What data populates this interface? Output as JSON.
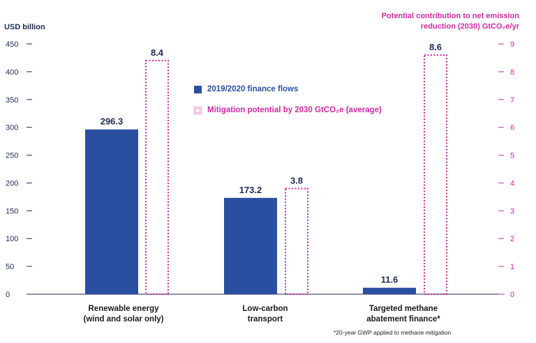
{
  "chart_data": {
    "type": "bar",
    "categories": [
      [
        "Renewable energy",
        "(wind and solar only)"
      ],
      [
        "Low-carbon",
        "transport"
      ],
      [
        "Targeted methane",
        "abatement finance*"
      ]
    ],
    "series": [
      {
        "name": "2019/2020 finance flows",
        "axis": "left",
        "values": [
          296.3,
          173.2,
          11.6
        ],
        "labels": [
          "296.3",
          "173.2",
          "11.6"
        ],
        "color": "#2b4fa0",
        "style": "solid"
      },
      {
        "name": "Mitigation potential by 2030 GtCO₂e (average)",
        "axis": "right",
        "values": [
          8.4,
          3.8,
          8.6
        ],
        "labels": [
          "8.4",
          "3.8",
          "8.6"
        ],
        "color": "#cc2aa1",
        "style": "dotted-outline"
      }
    ],
    "ylabel_left": "USD billion",
    "ylabel_right": [
      "Potential contribution to net emission",
      "reduction (2030) GtCO₂e/yr"
    ],
    "ylim_left": [
      0,
      450
    ],
    "yticks_left": [
      0,
      50,
      100,
      150,
      200,
      250,
      300,
      350,
      400,
      450
    ],
    "ylim_right": [
      0,
      9
    ],
    "yticks_right": [
      0,
      1,
      2,
      3,
      4,
      5,
      6,
      7,
      8,
      9
    ],
    "legend_position": "upper-middle",
    "grid": false,
    "footnote": "*20-year GWP applied to methane mitigation"
  },
  "colors": {
    "left_axis_text": "#1f2a52",
    "right_axis_text": "#cc2aa1",
    "axis_line": "#1f2a52"
  }
}
